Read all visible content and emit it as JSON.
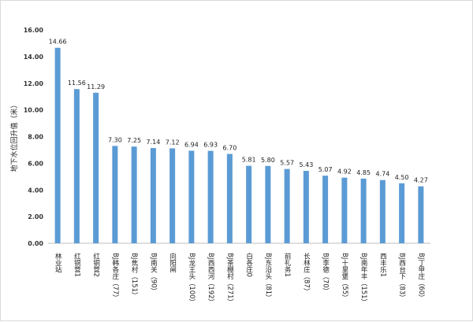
{
  "chart_data": {
    "type": "bar",
    "title": "",
    "xlabel": "",
    "ylabel": "地下水位回升值（米）",
    "ylim": [
      0,
      16
    ],
    "yticks": [
      "0.00",
      "2.00",
      "4.00",
      "6.00",
      "8.00",
      "10.00",
      "12.00",
      "14.00",
      "16.00"
    ],
    "grid": false,
    "legend": "none",
    "bar_color": "#5b9bd5",
    "categories": [
      "林业站",
      "红铜营1",
      "红铜营2",
      "BJ韩各庄（77）",
      "BJ焦村（151）",
      "BJ南关（90）",
      "向阳闸",
      "BJ龙王头（100）",
      "BJ西西河（192）",
      "BJ茶棚村（271）",
      "白各庄0",
      "BJ东沿头（81）",
      "前礼务1",
      "长林庄（87）",
      "BJ李德（70）",
      "BJ十里堡（55）",
      "BJ南年丰（151）",
      "西丰乐1",
      "BJ西台下（83）",
      "BJ丁甲庄（60）"
    ],
    "values": [
      14.66,
      11.56,
      11.29,
      7.3,
      7.25,
      7.14,
      7.12,
      6.94,
      6.93,
      6.7,
      5.81,
      5.8,
      5.57,
      5.43,
      5.07,
      4.92,
      4.85,
      4.74,
      4.5,
      4.27
    ],
    "value_labels": [
      "14.66",
      "11.56",
      "11.29",
      "7.30",
      "7.25",
      "7.14",
      "7.12",
      "6.94",
      "6.93",
      "6.70",
      "5.81",
      "5.80",
      "5.57",
      "5.43",
      "5.07",
      "4.92",
      "4.85",
      "4.74",
      "4.50",
      "4.27"
    ]
  }
}
